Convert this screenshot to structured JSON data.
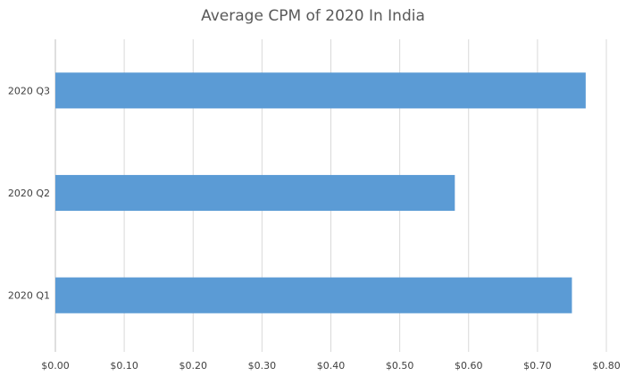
{
  "chart_data": {
    "type": "bar",
    "orientation": "horizontal",
    "title": "Average CPM of 2020 In India",
    "categories": [
      "2020 Q1",
      "2020 Q2",
      "2020 Q3"
    ],
    "values": [
      0.75,
      0.58,
      0.77
    ],
    "xlim": [
      0,
      0.8
    ],
    "x_ticks": [
      0,
      0.1,
      0.2,
      0.3,
      0.4,
      0.5,
      0.6,
      0.7,
      0.8
    ],
    "x_tick_labels": [
      "$0.00",
      "$0.10",
      "$0.20",
      "$0.30",
      "$0.40",
      "$0.50",
      "$0.60",
      "$0.70",
      "$0.80"
    ],
    "xlabel": "",
    "ylabel": "",
    "grid": "vertical",
    "legend": "none",
    "colors": {
      "bar": "#5b9bd5",
      "grid": "#d9d9d9",
      "axis": "#bfbfbf",
      "text": "#404040",
      "title": "#595959"
    }
  }
}
